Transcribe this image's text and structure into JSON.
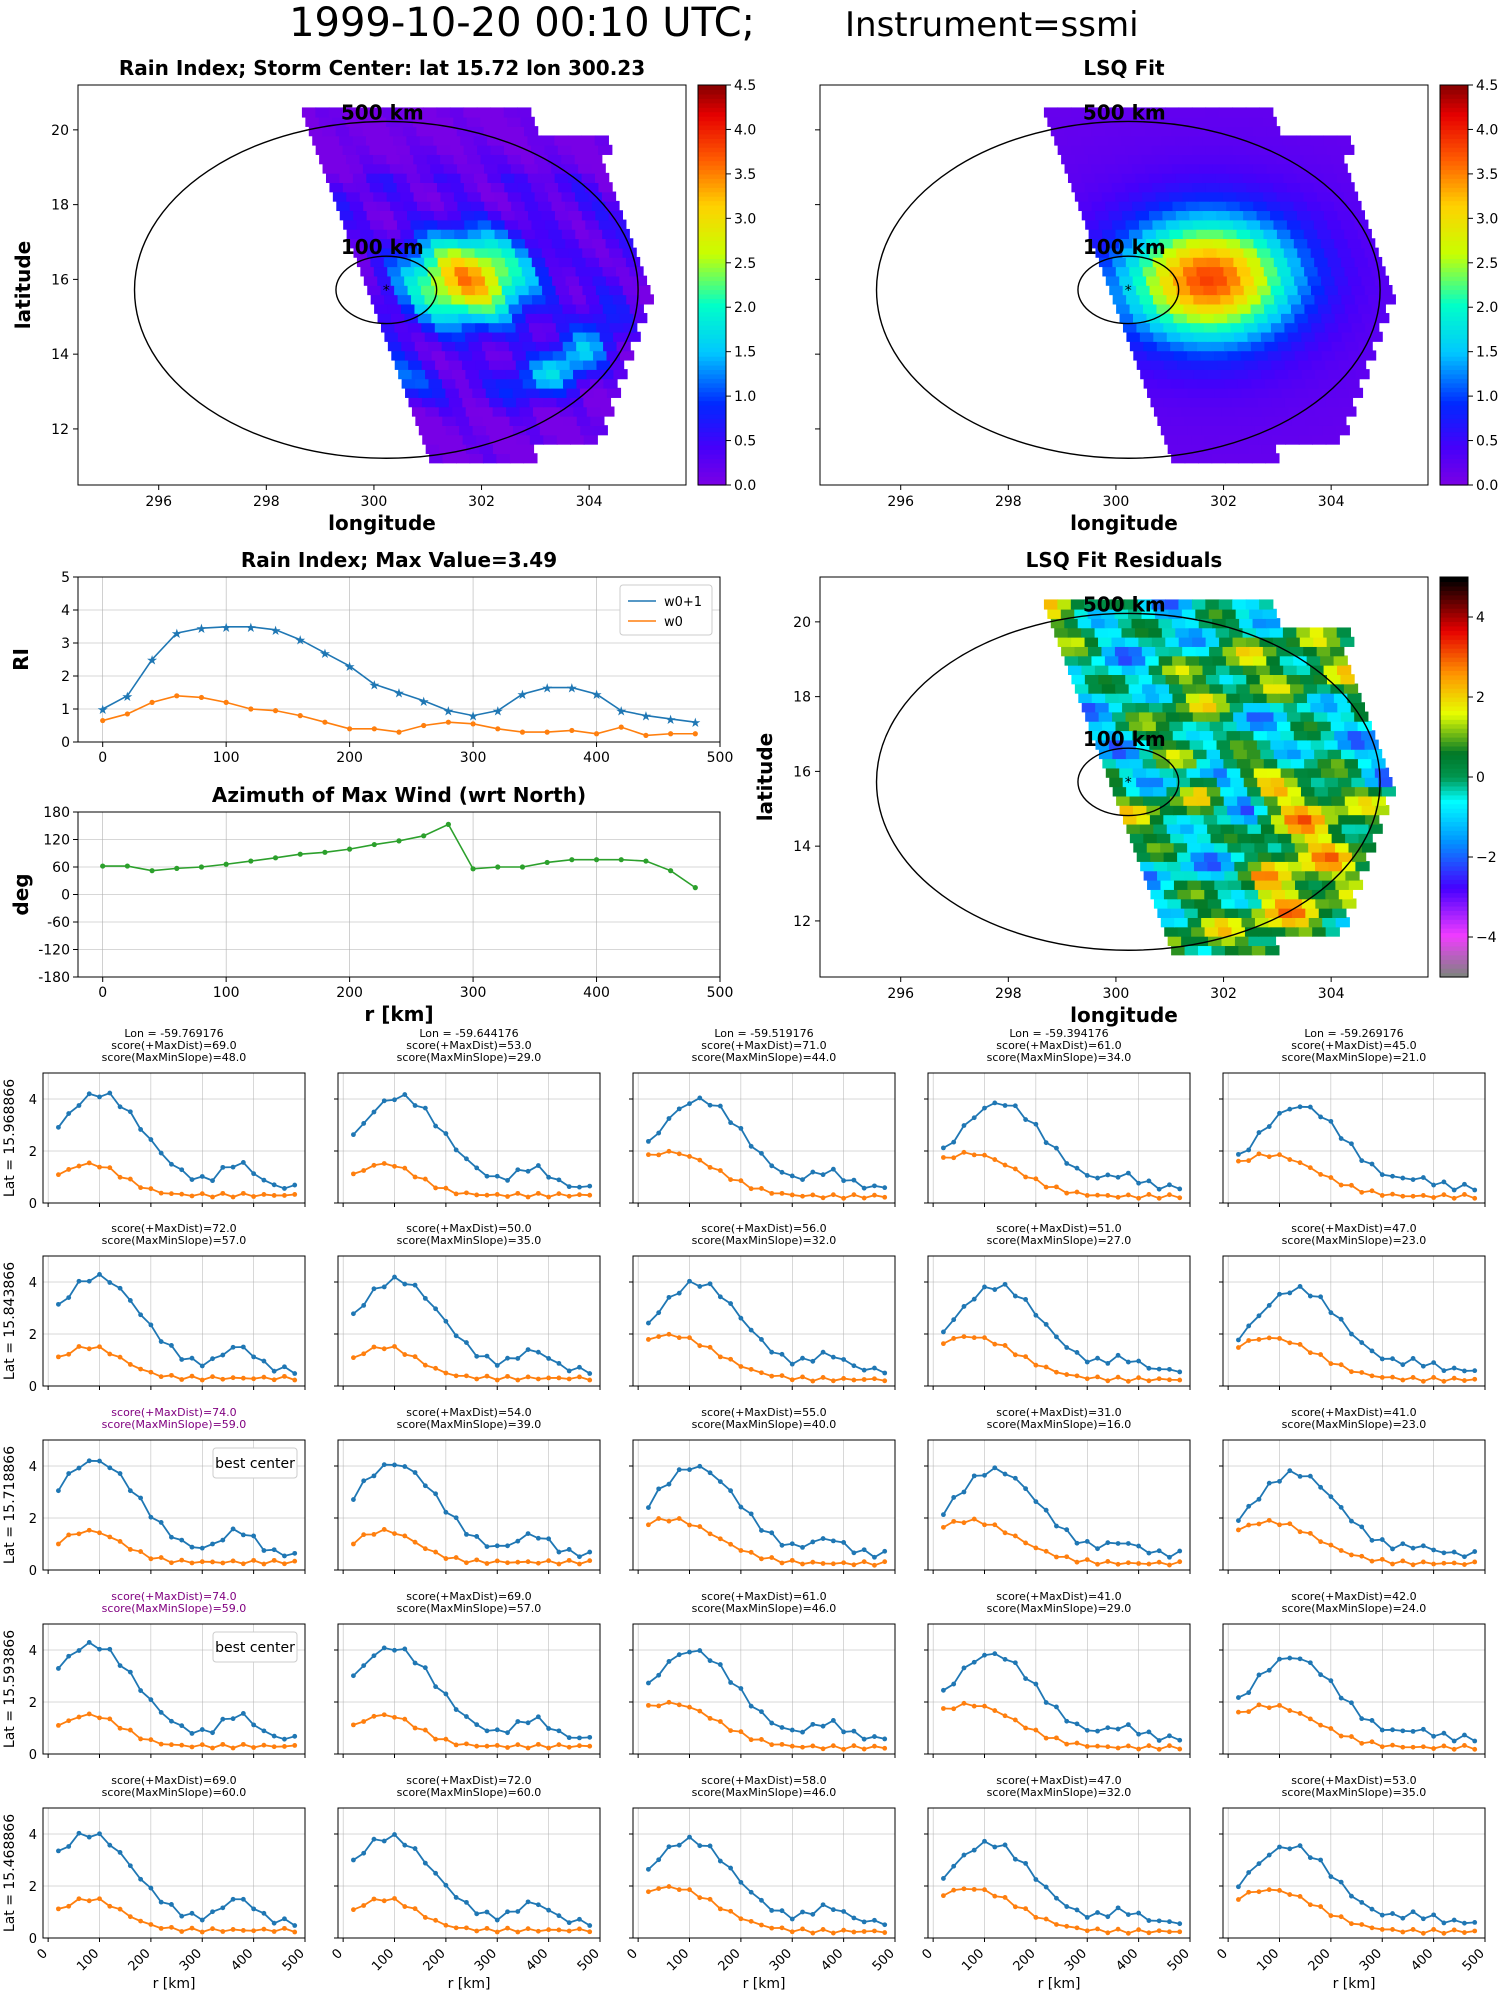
{
  "figure": {
    "title_main": "1999-10-20 00:10 UTC;",
    "title_instrument": "Instrument=ssmi"
  },
  "colors": {
    "w0p1": "#1f77b4",
    "w0": "#ff7f0e",
    "azimuth": "#2ca02c",
    "best_title": "#800080",
    "grid": "#b0b0b0",
    "circle": "#000000"
  },
  "chart_data": [
    {
      "id": "rain-index-map",
      "type": "heatmap",
      "title": "Rain Index; Storm Center: lat 15.72 lon 300.23",
      "xlabel": "longitude",
      "ylabel": "latitude",
      "xlim": [
        294.5,
        305.8
      ],
      "ylim": [
        10.5,
        21.2
      ],
      "xticks": [
        296,
        298,
        300,
        302,
        304
      ],
      "yticks": [
        12,
        14,
        16,
        18,
        20
      ],
      "colorbar": {
        "colormap": "rainbow",
        "range": [
          0,
          4.5
        ],
        "ticks": [
          "0.0",
          "0.5",
          "1.0",
          "1.5",
          "2.0",
          "2.5",
          "3.0",
          "3.5",
          "4.0",
          "4.5"
        ]
      },
      "storm_center": {
        "lon": 300.23,
        "lat": 15.72
      },
      "circles": [
        {
          "label": "500 km",
          "radius_km": 500
        },
        {
          "label": "100 km",
          "radius_km": 100
        }
      ],
      "swath_left_edge": {
        "from": [
          298.7,
          20.2
        ],
        "to": [
          301.0,
          11.2
        ]
      },
      "swath_right_lon": 305.0,
      "field_peak": {
        "lon": 301.9,
        "lat": 15.8,
        "value": 3.5
      }
    },
    {
      "id": "lsq-fit-map",
      "type": "heatmap",
      "title": "LSQ Fit",
      "xlabel": "longitude",
      "xlim": [
        294.5,
        305.8
      ],
      "ylim": [
        10.5,
        21.2
      ],
      "xticks": [
        296,
        298,
        300,
        302,
        304
      ],
      "yticks": [
        12,
        14,
        16,
        18,
        20
      ],
      "colorbar": {
        "colormap": "rainbow",
        "range": [
          0,
          4.5
        ],
        "ticks": [
          "0.0",
          "0.5",
          "1.0",
          "1.5",
          "2.0",
          "2.5",
          "3.0",
          "3.5",
          "4.0",
          "4.5"
        ]
      },
      "storm_center": {
        "lon": 300.23,
        "lat": 15.72
      },
      "circles": [
        {
          "label": "500 km",
          "radius_km": 500
        },
        {
          "label": "100 km",
          "radius_km": 100
        }
      ]
    },
    {
      "id": "rain-index-profile",
      "type": "line",
      "title": "Rain Index; Max Value=3.49",
      "ylabel": "RI",
      "xlim": [
        -20,
        500
      ],
      "ylim": [
        0,
        5
      ],
      "xticks": [
        0,
        100,
        200,
        300,
        400,
        500
      ],
      "yticks": [
        0,
        1,
        2,
        3,
        4,
        5
      ],
      "legend": "top-right",
      "x": [
        0,
        20,
        40,
        60,
        80,
        100,
        120,
        140,
        160,
        180,
        200,
        220,
        240,
        260,
        280,
        300,
        320,
        340,
        360,
        380,
        400,
        420,
        440,
        460,
        480
      ],
      "series": [
        {
          "name": "w0+1",
          "marker": "star",
          "values": [
            1.0,
            1.4,
            2.5,
            3.3,
            3.45,
            3.49,
            3.49,
            3.4,
            3.1,
            2.7,
            2.3,
            1.75,
            1.5,
            1.25,
            0.95,
            0.8,
            0.95,
            1.45,
            1.65,
            1.65,
            1.45,
            0.95,
            0.8,
            0.7,
            0.6
          ]
        },
        {
          "name": "w0",
          "marker": "dot",
          "values": [
            0.65,
            0.85,
            1.2,
            1.4,
            1.35,
            1.2,
            1.0,
            0.95,
            0.8,
            0.6,
            0.4,
            0.4,
            0.3,
            0.5,
            0.6,
            0.55,
            0.4,
            0.3,
            0.3,
            0.35,
            0.25,
            0.45,
            0.2,
            0.25,
            0.25
          ]
        }
      ]
    },
    {
      "id": "azimuth-max-wind",
      "type": "line",
      "title": "Azimuth of Max Wind (wrt North)",
      "xlabel": "r [km]",
      "ylabel": "deg",
      "xlim": [
        -20,
        500
      ],
      "ylim": [
        -180,
        180
      ],
      "xticks": [
        0,
        100,
        200,
        300,
        400,
        500
      ],
      "yticks": [
        180,
        120,
        60,
        0,
        -60,
        -120,
        -180
      ],
      "x": [
        0,
        20,
        40,
        60,
        80,
        100,
        120,
        140,
        160,
        180,
        200,
        220,
        240,
        260,
        280,
        300,
        320,
        340,
        360,
        380,
        400,
        420,
        440,
        460,
        480
      ],
      "series": [
        {
          "values": [
            62,
            62,
            52,
            57,
            60,
            66,
            73,
            80,
            88,
            92,
            99,
            109,
            117,
            128,
            153,
            56,
            60,
            60,
            70,
            76,
            76,
            76,
            73,
            52,
            15
          ]
        }
      ]
    },
    {
      "id": "lsq-fit-residuals",
      "type": "heatmap",
      "title": "LSQ Fit Residuals",
      "xlabel": "longitude",
      "ylabel": "latitude",
      "xlim": [
        294.5,
        305.8
      ],
      "ylim": [
        10.5,
        21.2
      ],
      "xticks": [
        296,
        298,
        300,
        302,
        304
      ],
      "yticks": [
        12,
        14,
        16,
        18,
        20
      ],
      "colorbar": {
        "colormap": "diverging",
        "range": [
          -5,
          5
        ],
        "ticks": [
          "4",
          "2",
          "0",
          "−2",
          "−4"
        ]
      },
      "storm_center": {
        "lon": 300.23,
        "lat": 15.72
      },
      "circles": [
        {
          "label": "500 km",
          "radius_km": 500
        },
        {
          "label": "100 km",
          "radius_km": 100
        }
      ]
    },
    {
      "id": "profile-grid",
      "type": "line",
      "xlabel": "r [km]",
      "xlim": [
        -10,
        500
      ],
      "ylim": [
        0,
        5
      ],
      "xticks": [
        0,
        100,
        200,
        300,
        400,
        500
      ],
      "yticks": [
        0,
        2,
        4
      ],
      "x": [
        20,
        40,
        60,
        80,
        100,
        120,
        140,
        160,
        180,
        200,
        220,
        240,
        260,
        280,
        300,
        320,
        340,
        360,
        380,
        400,
        420,
        440,
        460,
        480
      ],
      "row_labels": [
        "Lat = 15.968866",
        "Lat = 15.843866",
        "Lat = 15.718866",
        "Lat = 15.593866",
        "Lat = 15.468866"
      ],
      "col_lons": [
        "Lon = -59.769176",
        "Lon = -59.644176",
        "Lon = -59.519176",
        "Lon = -59.394176",
        "Lon = -59.269176"
      ],
      "panels": [
        {
          "row": 0,
          "col": 0,
          "score_maxdist": "score(+MaxDist)=69.0",
          "score_slope": "score(MaxMinSlope)=48.0"
        },
        {
          "row": 0,
          "col": 1,
          "score_maxdist": "score(+MaxDist)=53.0",
          "score_slope": "score(MaxMinSlope)=29.0"
        },
        {
          "row": 0,
          "col": 2,
          "score_maxdist": "score(+MaxDist)=71.0",
          "score_slope": "score(MaxMinSlope)=44.0"
        },
        {
          "row": 0,
          "col": 3,
          "score_maxdist": "score(+MaxDist)=61.0",
          "score_slope": "score(MaxMinSlope)=34.0"
        },
        {
          "row": 0,
          "col": 4,
          "score_maxdist": "score(+MaxDist)=45.0",
          "score_slope": "score(MaxMinSlope)=21.0"
        },
        {
          "row": 1,
          "col": 0,
          "score_maxdist": "score(+MaxDist)=72.0",
          "score_slope": "score(MaxMinSlope)=57.0"
        },
        {
          "row": 1,
          "col": 1,
          "score_maxdist": "score(+MaxDist)=50.0",
          "score_slope": "score(MaxMinSlope)=35.0"
        },
        {
          "row": 1,
          "col": 2,
          "score_maxdist": "score(+MaxDist)=56.0",
          "score_slope": "score(MaxMinSlope)=32.0"
        },
        {
          "row": 1,
          "col": 3,
          "score_maxdist": "score(+MaxDist)=51.0",
          "score_slope": "score(MaxMinSlope)=27.0"
        },
        {
          "row": 1,
          "col": 4,
          "score_maxdist": "score(+MaxDist)=47.0",
          "score_slope": "score(MaxMinSlope)=23.0"
        },
        {
          "row": 2,
          "col": 0,
          "score_maxdist": "score(+MaxDist)=74.0",
          "score_slope": "score(MaxMinSlope)=59.0",
          "best": true,
          "legend": "best center"
        },
        {
          "row": 2,
          "col": 1,
          "score_maxdist": "score(+MaxDist)=54.0",
          "score_slope": "score(MaxMinSlope)=39.0"
        },
        {
          "row": 2,
          "col": 2,
          "score_maxdist": "score(+MaxDist)=55.0",
          "score_slope": "score(MaxMinSlope)=40.0"
        },
        {
          "row": 2,
          "col": 3,
          "score_maxdist": "score(+MaxDist)=31.0",
          "score_slope": "score(MaxMinSlope)=16.0"
        },
        {
          "row": 2,
          "col": 4,
          "score_maxdist": "score(+MaxDist)=41.0",
          "score_slope": "score(MaxMinSlope)=23.0"
        },
        {
          "row": 3,
          "col": 0,
          "score_maxdist": "score(+MaxDist)=74.0",
          "score_slope": "score(MaxMinSlope)=59.0",
          "best": true,
          "legend": "best center"
        },
        {
          "row": 3,
          "col": 1,
          "score_maxdist": "score(+MaxDist)=69.0",
          "score_slope": "score(MaxMinSlope)=57.0"
        },
        {
          "row": 3,
          "col": 2,
          "score_maxdist": "score(+MaxDist)=61.0",
          "score_slope": "score(MaxMinSlope)=46.0"
        },
        {
          "row": 3,
          "col": 3,
          "score_maxdist": "score(+MaxDist)=41.0",
          "score_slope": "score(MaxMinSlope)=29.0"
        },
        {
          "row": 3,
          "col": 4,
          "score_maxdist": "score(+MaxDist)=42.0",
          "score_slope": "score(MaxMinSlope)=24.0"
        },
        {
          "row": 4,
          "col": 0,
          "score_maxdist": "score(+MaxDist)=69.0",
          "score_slope": "score(MaxMinSlope)=60.0"
        },
        {
          "row": 4,
          "col": 1,
          "score_maxdist": "score(+MaxDist)=72.0",
          "score_slope": "score(MaxMinSlope)=60.0"
        },
        {
          "row": 4,
          "col": 2,
          "score_maxdist": "score(+MaxDist)=58.0",
          "score_slope": "score(MaxMinSlope)=46.0"
        },
        {
          "row": 4,
          "col": 3,
          "score_maxdist": "score(+MaxDist)=47.0",
          "score_slope": "score(MaxMinSlope)=32.0"
        },
        {
          "row": 4,
          "col": 4,
          "score_maxdist": "score(+MaxDist)=53.0",
          "score_slope": "score(MaxMinSlope)=35.0"
        }
      ]
    }
  ]
}
